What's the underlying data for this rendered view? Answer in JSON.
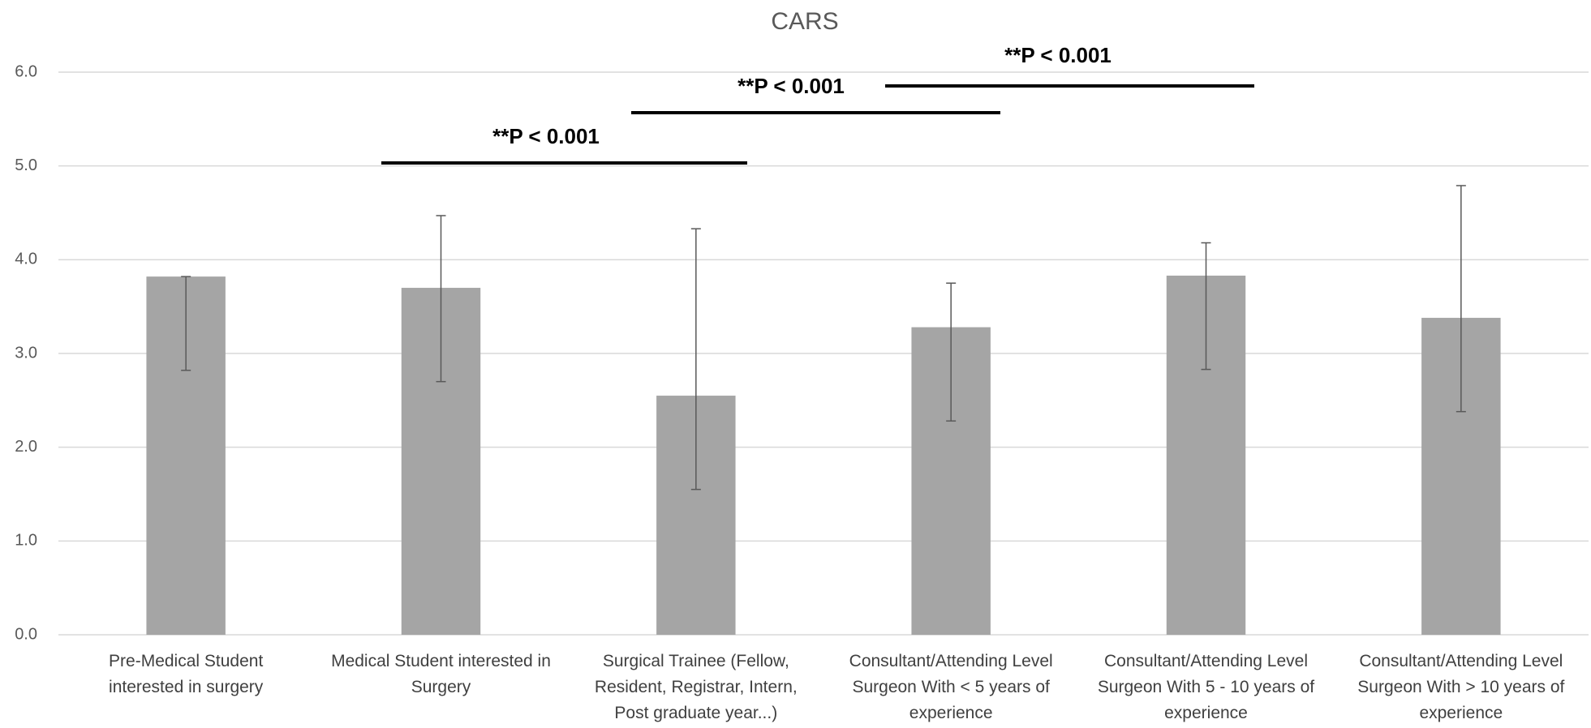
{
  "chart_data": {
    "type": "bar",
    "title": "CARS",
    "categories": [
      "Pre-Medical Student\ninterested in surgery",
      "Medical Student interested in\nSurgery",
      "Surgical Trainee (Fellow,\nResident, Registrar, Intern,\nPost graduate year...)",
      "Consultant/Attending Level\nSurgeon With < 5 years of\nexperience",
      "Consultant/Attending Level\nSurgeon With  5 - 10 years of\nexperience",
      "Consultant/Attending Level\nSurgeon With  > 10 years of\nexperience"
    ],
    "values": [
      3.82,
      3.7,
      2.55,
      3.28,
      3.83,
      3.38
    ],
    "error_minus": [
      1.0,
      1.0,
      1.0,
      1.0,
      1.0,
      1.0
    ],
    "error_plus": [
      0,
      0.77,
      1.78,
      0.47,
      0.35,
      1.41
    ],
    "color": "#a5a5a5",
    "ylim": [
      0,
      6
    ],
    "yticks": [
      {
        "value": 0,
        "label": "0.0"
      },
      {
        "value": 1,
        "label": "1.0"
      },
      {
        "value": 2,
        "label": "2.0"
      },
      {
        "value": 3,
        "label": "3.0"
      },
      {
        "value": 4,
        "label": "4.0"
      },
      {
        "value": 5,
        "label": "5.0"
      },
      {
        "value": 6,
        "label": "6.0"
      }
    ],
    "grid": true,
    "annotations": [
      "**P < 0.001",
      "**P < 0.001",
      "**P < 0.001"
    ]
  }
}
